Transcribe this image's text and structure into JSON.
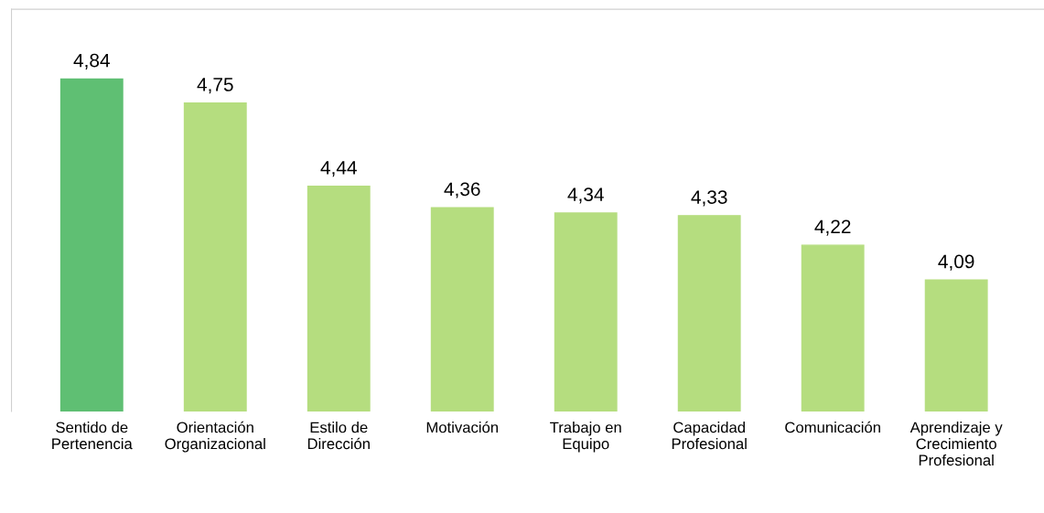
{
  "chart_data": {
    "type": "bar",
    "categories": [
      "Sentido de\nPertenencia",
      "Orientación\nOrganizacional",
      "Estilo de\nDirección",
      "Motivación",
      "Trabajo en\nEquipo",
      "Capacidad\nProfesional",
      "Comunicación",
      "Aprendizaje y\nCrecimiento\nProfesional"
    ],
    "values": [
      4.84,
      4.75,
      4.44,
      4.36,
      4.34,
      4.33,
      4.22,
      4.09
    ],
    "value_labels": [
      "4,84",
      "4,75",
      "4,44",
      "4,36",
      "4,34",
      "4,33",
      "4,22",
      "4,09"
    ],
    "colors": [
      "#5fbf73",
      "#b5dd7f",
      "#b5dd7f",
      "#b5dd7f",
      "#b5dd7f",
      "#b5dd7f",
      "#b5dd7f",
      "#b5dd7f"
    ],
    "ylim": [
      3.6,
      5.1
    ],
    "grid": false,
    "legend": false
  }
}
